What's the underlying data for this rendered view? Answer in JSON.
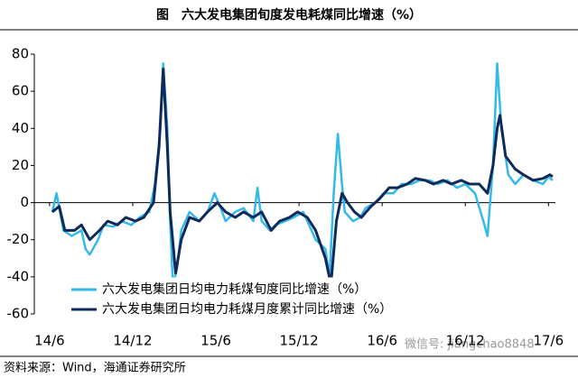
{
  "chart_data": {
    "type": "line",
    "title": "图　六大发电集团旬度发电耗煤同比增速（%）",
    "source": "资料来源：Wind，海通证券研究所",
    "watermark": "微信号: jiangchao8848",
    "xlim": [
      -1.1,
      36.5
    ],
    "xticks": [
      {
        "value": 0,
        "label": "14/6"
      },
      {
        "value": 6,
        "label": "14/12"
      },
      {
        "value": 12,
        "label": "15/6"
      },
      {
        "value": 18,
        "label": "15/12"
      },
      {
        "value": 24,
        "label": "16/6"
      },
      {
        "value": 30,
        "label": "16/12"
      },
      {
        "value": 36,
        "label": "17/6"
      }
    ],
    "ylim": [
      -60,
      80
    ],
    "yticks": [
      80,
      60,
      40,
      20,
      0,
      -20,
      -40,
      -60
    ],
    "grid": false,
    "legend": "lower left",
    "series": [
      {
        "name": "六大发电集团日均电力耗煤旬度同比增速（%）",
        "color": "#33b9ea",
        "x": [
          0.2,
          0.5,
          1.0,
          1.6,
          2.3,
          2.6,
          2.9,
          3.5,
          3.9,
          4.6,
          5.2,
          5.9,
          6.5,
          7.2,
          7.6,
          8.0,
          8.2,
          8.5,
          8.7,
          8.9,
          9.2,
          9.5,
          10.1,
          10.8,
          11.4,
          11.9,
          12.3,
          12.7,
          13.4,
          14.0,
          14.7,
          15.0,
          15.3,
          15.9,
          16.3,
          17.0,
          17.6,
          18.3,
          18.6,
          19.2,
          19.9,
          20.2,
          20.5,
          20.8,
          21.1,
          21.3,
          21.9,
          22.4,
          22.8,
          23.5,
          24.1,
          24.8,
          25.4,
          26.1,
          26.7,
          27.4,
          28.0,
          28.7,
          29.4,
          30.0,
          30.7,
          31.3,
          31.6,
          32.0,
          32.3,
          32.6,
          33.1,
          33.6,
          34.2,
          34.9,
          35.6,
          36.0,
          36.3
        ],
        "values": [
          -5,
          5,
          -15,
          -18,
          -15,
          -25,
          -28,
          -20,
          -12,
          -13,
          -10,
          -12,
          -8,
          -5,
          10,
          40,
          75,
          40,
          -10,
          -45,
          -35,
          -15,
          -5,
          -10,
          -5,
          5,
          -2,
          -10,
          -5,
          -3,
          -10,
          8,
          -10,
          -15,
          -12,
          -10,
          -8,
          -5,
          -10,
          -20,
          -25,
          -40,
          5,
          37,
          10,
          -5,
          -10,
          -8,
          -3,
          0,
          5,
          5,
          10,
          10,
          12,
          12,
          10,
          12,
          8,
          10,
          5,
          -10,
          -18,
          20,
          75,
          40,
          15,
          10,
          15,
          12,
          10,
          14,
          12
        ]
      },
      {
        "name": "六大发电集团日均电力耗煤月度累计同比增速（%）",
        "color": "#0e2a5a",
        "x": [
          0.2,
          0.7,
          1.1,
          1.8,
          2.3,
          2.9,
          3.6,
          4.2,
          4.9,
          5.5,
          6.2,
          6.8,
          7.5,
          7.9,
          8.2,
          8.5,
          8.7,
          9.1,
          9.5,
          10.1,
          10.8,
          11.4,
          12.1,
          12.7,
          13.4,
          14.0,
          14.7,
          15.3,
          16.0,
          16.6,
          17.3,
          17.9,
          18.6,
          19.2,
          19.9,
          20.3,
          20.7,
          21.1,
          21.5,
          22.0,
          22.5,
          23.2,
          23.8,
          24.5,
          25.1,
          25.8,
          26.4,
          27.1,
          27.7,
          28.4,
          29.0,
          29.7,
          30.3,
          31.0,
          31.6,
          32.0,
          32.3,
          32.5,
          32.9,
          33.6,
          34.2,
          34.9,
          35.6,
          36.1,
          36.3
        ],
        "values": [
          -5,
          -2,
          -15,
          -15,
          -12,
          -20,
          -15,
          -10,
          -12,
          -8,
          -10,
          -8,
          0,
          30,
          72,
          30,
          -5,
          -38,
          -20,
          -8,
          -10,
          -5,
          0,
          -5,
          -8,
          -5,
          -8,
          -5,
          -15,
          -10,
          -8,
          -5,
          -8,
          -15,
          -30,
          -44,
          -10,
          5,
          0,
          -5,
          -8,
          -2,
          2,
          8,
          8,
          10,
          13,
          12,
          10,
          12,
          10,
          12,
          10,
          10,
          5,
          20,
          40,
          47,
          25,
          18,
          15,
          12,
          13,
          15,
          14
        ]
      }
    ]
  }
}
